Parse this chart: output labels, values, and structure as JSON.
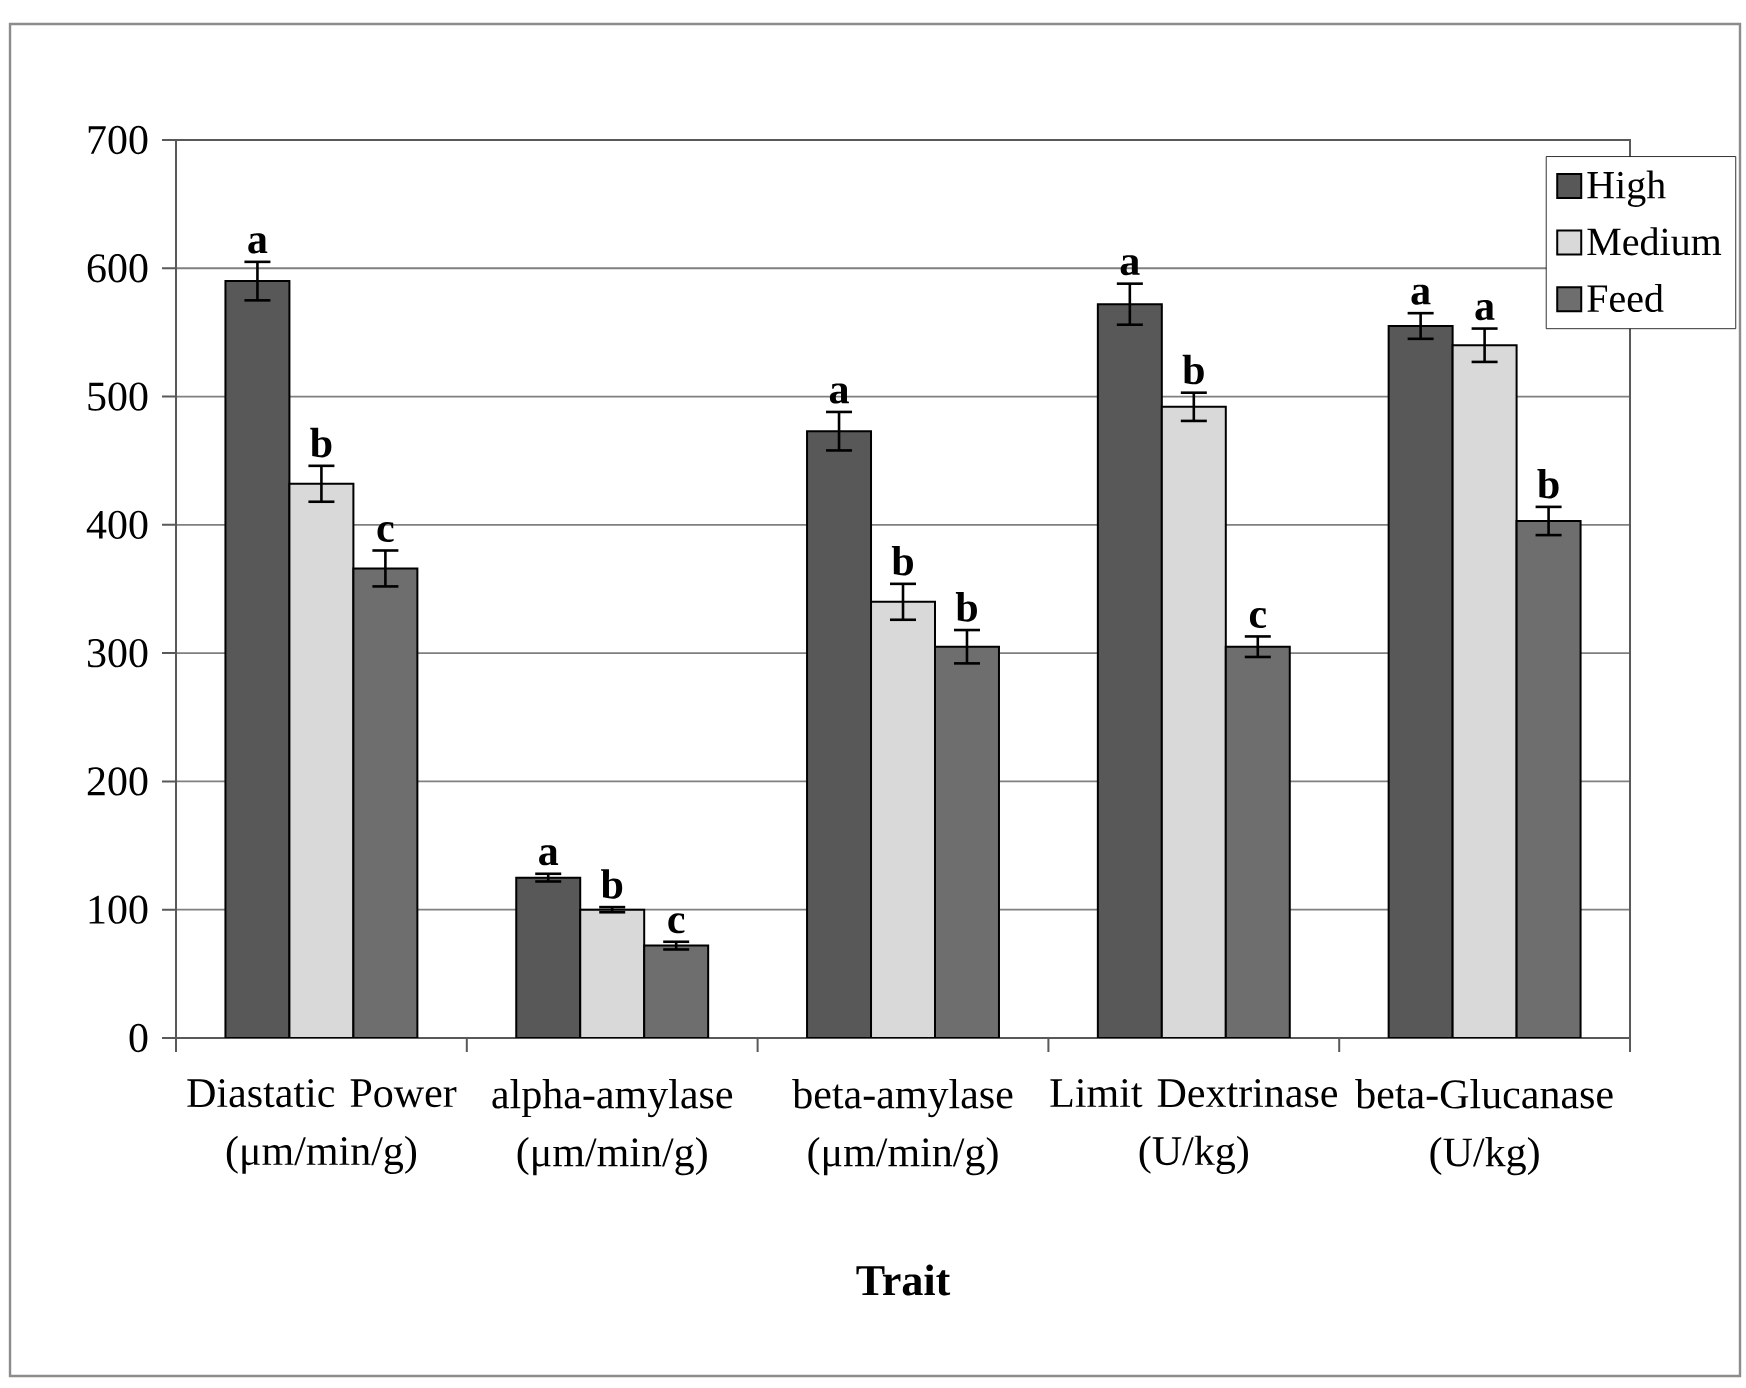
{
  "chart_data": {
    "type": "bar",
    "xlabel": "Trait",
    "categories": [
      "Diastatic Power (μm/min/g)",
      "alpha-amylase (μm/min/g)",
      "beta-amylase (μm/min/g)",
      "Limit Dextrinase (U/kg)",
      "beta-Glucanase (U/kg)"
    ],
    "series": [
      {
        "name": "High",
        "color": "#585858",
        "values": [
          590,
          125,
          473,
          572,
          555
        ],
        "errors": [
          15,
          3,
          15,
          16,
          10
        ],
        "value_labels": [
          "a",
          "a",
          "a",
          "a",
          "a"
        ]
      },
      {
        "name": "Medium",
        "color": "#d9d9d9",
        "values": [
          432,
          100,
          340,
          492,
          540
        ],
        "errors": [
          14,
          2,
          14,
          11,
          13
        ],
        "value_labels": [
          "b",
          "b",
          "b",
          "b",
          "a"
        ]
      },
      {
        "name": "Feed",
        "color": "#6e6e6e",
        "values": [
          366,
          72,
          305,
          305,
          403
        ],
        "errors": [
          14,
          3,
          13,
          8,
          11
        ],
        "value_labels": [
          "c",
          "c",
          "b",
          "c",
          "b"
        ]
      }
    ],
    "ylim": [
      0,
      700
    ],
    "yticks": [
      0,
      100,
      200,
      300,
      400,
      500,
      600,
      700
    ],
    "grid": "y",
    "legend": "top right"
  }
}
